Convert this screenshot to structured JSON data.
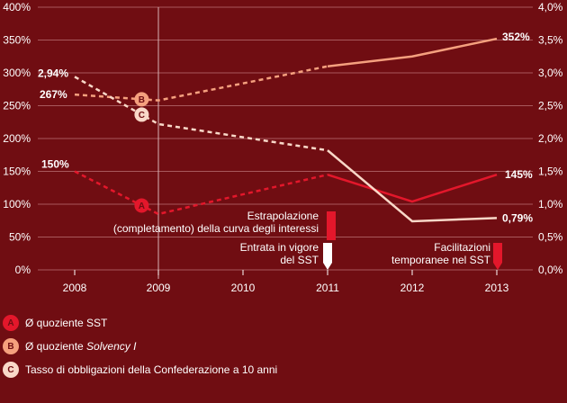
{
  "chart_data": {
    "type": "line",
    "title": "",
    "xlabel": "",
    "ylabel_left": "",
    "ylabel_right": "",
    "categories": [
      "2008",
      "2009",
      "2010",
      "2011",
      "2012",
      "2013"
    ],
    "y_left_ticks": [
      "0%",
      "50%",
      "100%",
      "150%",
      "200%",
      "250%",
      "300%",
      "350%",
      "400%"
    ],
    "y_left_range": [
      0,
      400
    ],
    "y_right_ticks": [
      "0,0%",
      "0,5%",
      "1,0%",
      "1,5%",
      "2,0%",
      "2,5%",
      "3,0%",
      "3,5%",
      "4,0%"
    ],
    "y_right_range": [
      0,
      4.0
    ],
    "grid": true,
    "series": [
      {
        "marker": "A",
        "axis": "left",
        "color": "#e3172b",
        "x": [
          2008,
          2009,
          2011,
          2012,
          2013
        ],
        "values": [
          150,
          85,
          145,
          104,
          145
        ],
        "dashed_until": 2011,
        "start_label": "150%",
        "end_label": "145%"
      },
      {
        "marker": "B",
        "axis": "left",
        "color": "#f5a07e",
        "x": [
          2008,
          2009,
          2011,
          2012,
          2013
        ],
        "values": [
          267,
          258,
          310,
          325,
          352
        ],
        "dashed_until": 2011,
        "start_label": "267%",
        "end_label": "352%"
      },
      {
        "marker": "C",
        "axis": "right",
        "color": "#f9d8c8",
        "x": [
          2008,
          2009,
          2011,
          2012,
          2013
        ],
        "values": [
          2.94,
          2.22,
          1.82,
          0.74,
          0.79
        ],
        "dashed_until": 2011,
        "start_label": "2,94%",
        "end_label": "0,79%"
      }
    ],
    "annotations": [
      {
        "year": 2011,
        "lines": [
          "Estrapolazione",
          "(completamento) della curva degli interessi"
        ],
        "style": "red-bar"
      },
      {
        "year": 2011,
        "lines": [
          "Entrata in vigore",
          "del SST"
        ],
        "style": "white-arrow"
      },
      {
        "year": 2013,
        "lines": [
          "Facilitazioni",
          "temporanee nel SST"
        ],
        "style": "red-arrow"
      }
    ]
  },
  "legend": [
    {
      "badge": "A",
      "color": "#e3172b",
      "text": "Ø quoziente SST",
      "italic": ""
    },
    {
      "badge": "B",
      "color": "#f5a07e",
      "text": "Ø quoziente ",
      "italic": "Solvency I"
    },
    {
      "badge": "C",
      "color": "#f9d8c8",
      "text": "Tasso di obbligazioni della Confederazione a 10 anni",
      "italic": ""
    }
  ]
}
